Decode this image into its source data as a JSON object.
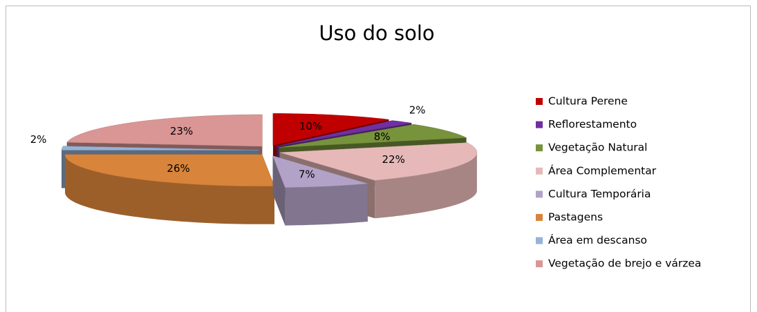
{
  "chart_data": {
    "type": "pie",
    "title": "Uso do solo",
    "categories": [
      "Cultura Perene",
      "Reflorestamento",
      "Vegetação Natural",
      "Área Complementar",
      "Cultura Temporária",
      "Pastagens",
      "Área em descanso",
      "Vegetação de brejo e várzea"
    ],
    "values": [
      10,
      2,
      8,
      22,
      7,
      26,
      2,
      23
    ],
    "value_labels": [
      "10%",
      "2%",
      "8%",
      "22%",
      "7%",
      "26%",
      "2%",
      "23%"
    ],
    "colors": [
      "#c00000",
      "#7030a0",
      "#77933c",
      "#e6b9b8",
      "#b3a2c7",
      "#d9843b",
      "#95b3d7",
      "#d99694"
    ],
    "legend": "right"
  }
}
